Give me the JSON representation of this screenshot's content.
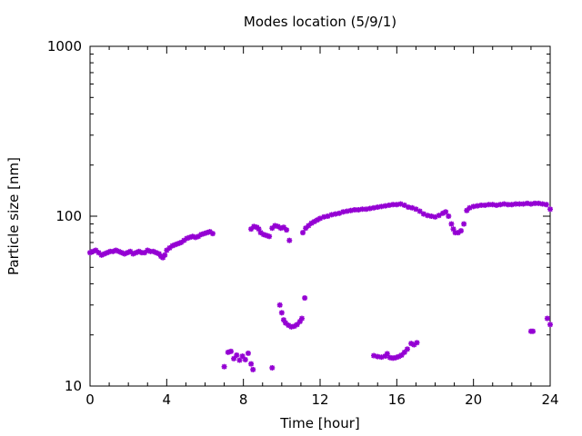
{
  "chart_data": {
    "type": "scatter",
    "title": "Modes location (5/9/1)",
    "xlabel": "Time [hour]",
    "ylabel": "Particle size [nm]",
    "xlim": [
      0,
      24
    ],
    "ylim": [
      10,
      1000
    ],
    "yscale": "log",
    "grid": false,
    "legend": "none",
    "marker_color": "#9400d3",
    "x_ticks": [
      0,
      4,
      8,
      12,
      16,
      20,
      24
    ],
    "y_ticks": [
      10,
      100,
      1000
    ],
    "x_tick_labels": [
      "0",
      "4",
      "8",
      "12",
      "16",
      "20",
      "24"
    ],
    "y_tick_labels": [
      "10",
      "100",
      "1000"
    ],
    "series": [
      {
        "points": [
          [
            0.0,
            61
          ],
          [
            0.15,
            62
          ],
          [
            0.3,
            63
          ],
          [
            0.45,
            61
          ],
          [
            0.6,
            59
          ],
          [
            0.75,
            60
          ],
          [
            0.9,
            61
          ],
          [
            1.05,
            62
          ],
          [
            1.2,
            62
          ],
          [
            1.35,
            63
          ],
          [
            1.5,
            62
          ],
          [
            1.65,
            61
          ],
          [
            1.8,
            60
          ],
          [
            1.95,
            61
          ],
          [
            2.1,
            62
          ],
          [
            2.25,
            60
          ],
          [
            2.4,
            61
          ],
          [
            2.55,
            62
          ],
          [
            2.7,
            61
          ],
          [
            2.85,
            61
          ],
          [
            3.0,
            63
          ],
          [
            3.15,
            62
          ],
          [
            3.3,
            62
          ],
          [
            3.45,
            61
          ],
          [
            3.6,
            60
          ],
          [
            3.7,
            58
          ],
          [
            3.8,
            57
          ],
          [
            3.9,
            59
          ],
          [
            4.0,
            63
          ],
          [
            4.15,
            65
          ],
          [
            4.3,
            67
          ],
          [
            4.45,
            68
          ],
          [
            4.6,
            69
          ],
          [
            4.75,
            70
          ],
          [
            4.9,
            72
          ],
          [
            5.05,
            74
          ],
          [
            5.2,
            75
          ],
          [
            5.35,
            76
          ],
          [
            5.5,
            75
          ],
          [
            5.65,
            76
          ],
          [
            5.8,
            78
          ],
          [
            5.95,
            79
          ],
          [
            6.1,
            80
          ],
          [
            6.25,
            81
          ],
          [
            6.4,
            79
          ],
          [
            8.4,
            84
          ],
          [
            8.55,
            87
          ],
          [
            8.7,
            86
          ],
          [
            8.8,
            84
          ],
          [
            8.9,
            80
          ],
          [
            9.05,
            78
          ],
          [
            9.2,
            77
          ],
          [
            9.35,
            76
          ],
          [
            9.5,
            85
          ],
          [
            9.65,
            88
          ],
          [
            9.8,
            87
          ],
          [
            9.95,
            85
          ],
          [
            10.1,
            86
          ],
          [
            10.25,
            83
          ],
          [
            10.4,
            72
          ],
          [
            11.1,
            80
          ],
          [
            11.25,
            85
          ],
          [
            11.4,
            88
          ],
          [
            11.55,
            91
          ],
          [
            11.7,
            93
          ],
          [
            11.85,
            95
          ],
          [
            12.0,
            97
          ],
          [
            12.2,
            99
          ],
          [
            12.4,
            100
          ],
          [
            12.6,
            102
          ],
          [
            12.8,
            103
          ],
          [
            13.0,
            104
          ],
          [
            13.2,
            106
          ],
          [
            13.4,
            107
          ],
          [
            13.6,
            108
          ],
          [
            13.8,
            109
          ],
          [
            14.0,
            109
          ],
          [
            14.2,
            110
          ],
          [
            14.4,
            110
          ],
          [
            14.6,
            111
          ],
          [
            14.8,
            112
          ],
          [
            15.0,
            113
          ],
          [
            15.2,
            114
          ],
          [
            15.4,
            115
          ],
          [
            15.6,
            116
          ],
          [
            15.8,
            117
          ],
          [
            16.0,
            117
          ],
          [
            16.2,
            118
          ],
          [
            16.4,
            116
          ],
          [
            16.6,
            113
          ],
          [
            16.8,
            112
          ],
          [
            17.0,
            110
          ],
          [
            17.2,
            107
          ],
          [
            17.4,
            103
          ],
          [
            17.6,
            101
          ],
          [
            17.8,
            100
          ],
          [
            18.0,
            99
          ],
          [
            18.2,
            101
          ],
          [
            18.4,
            104
          ],
          [
            18.55,
            106
          ],
          [
            18.7,
            100
          ],
          [
            18.85,
            90
          ],
          [
            18.95,
            84
          ],
          [
            19.05,
            80
          ],
          [
            19.2,
            80
          ],
          [
            19.35,
            82
          ],
          [
            19.5,
            90
          ],
          [
            19.65,
            108
          ],
          [
            19.8,
            112
          ],
          [
            20.0,
            114
          ],
          [
            20.2,
            115
          ],
          [
            20.4,
            116
          ],
          [
            20.6,
            116
          ],
          [
            20.8,
            117
          ],
          [
            21.0,
            117
          ],
          [
            21.2,
            116
          ],
          [
            21.4,
            117
          ],
          [
            21.6,
            118
          ],
          [
            21.8,
            117
          ],
          [
            22.0,
            117
          ],
          [
            22.2,
            118
          ],
          [
            22.4,
            118
          ],
          [
            22.6,
            118
          ],
          [
            22.8,
            119
          ],
          [
            23.0,
            118
          ],
          [
            23.2,
            119
          ],
          [
            23.4,
            119
          ],
          [
            23.6,
            118
          ],
          [
            23.8,
            117
          ],
          [
            24.0,
            110
          ],
          [
            7.0,
            13.0
          ],
          [
            7.2,
            15.8
          ],
          [
            7.35,
            16.0
          ],
          [
            7.5,
            14.5
          ],
          [
            7.65,
            15.2
          ],
          [
            7.8,
            14.2
          ],
          [
            7.95,
            15.0
          ],
          [
            8.1,
            14.3
          ],
          [
            8.25,
            15.6
          ],
          [
            8.4,
            13.5
          ],
          [
            8.5,
            12.5
          ],
          [
            9.5,
            12.8
          ],
          [
            9.9,
            30
          ],
          [
            10.0,
            27
          ],
          [
            10.1,
            24.5
          ],
          [
            10.2,
            23.5
          ],
          [
            10.35,
            22.8
          ],
          [
            10.5,
            22.3
          ],
          [
            10.65,
            22.5
          ],
          [
            10.8,
            23.0
          ],
          [
            10.95,
            24.0
          ],
          [
            11.05,
            25.0
          ],
          [
            11.2,
            33
          ],
          [
            14.8,
            15.1
          ],
          [
            15.0,
            14.9
          ],
          [
            15.2,
            14.8
          ],
          [
            15.4,
            15.0
          ],
          [
            15.5,
            15.5
          ],
          [
            15.65,
            14.7
          ],
          [
            15.8,
            14.6
          ],
          [
            15.95,
            14.7
          ],
          [
            16.1,
            14.9
          ],
          [
            16.25,
            15.2
          ],
          [
            16.4,
            15.8
          ],
          [
            16.55,
            16.5
          ],
          [
            16.75,
            17.8
          ],
          [
            16.9,
            17.5
          ],
          [
            17.05,
            18.0
          ],
          [
            23.0,
            21
          ],
          [
            23.1,
            21
          ],
          [
            23.85,
            25
          ],
          [
            24.0,
            23
          ]
        ]
      }
    ]
  }
}
